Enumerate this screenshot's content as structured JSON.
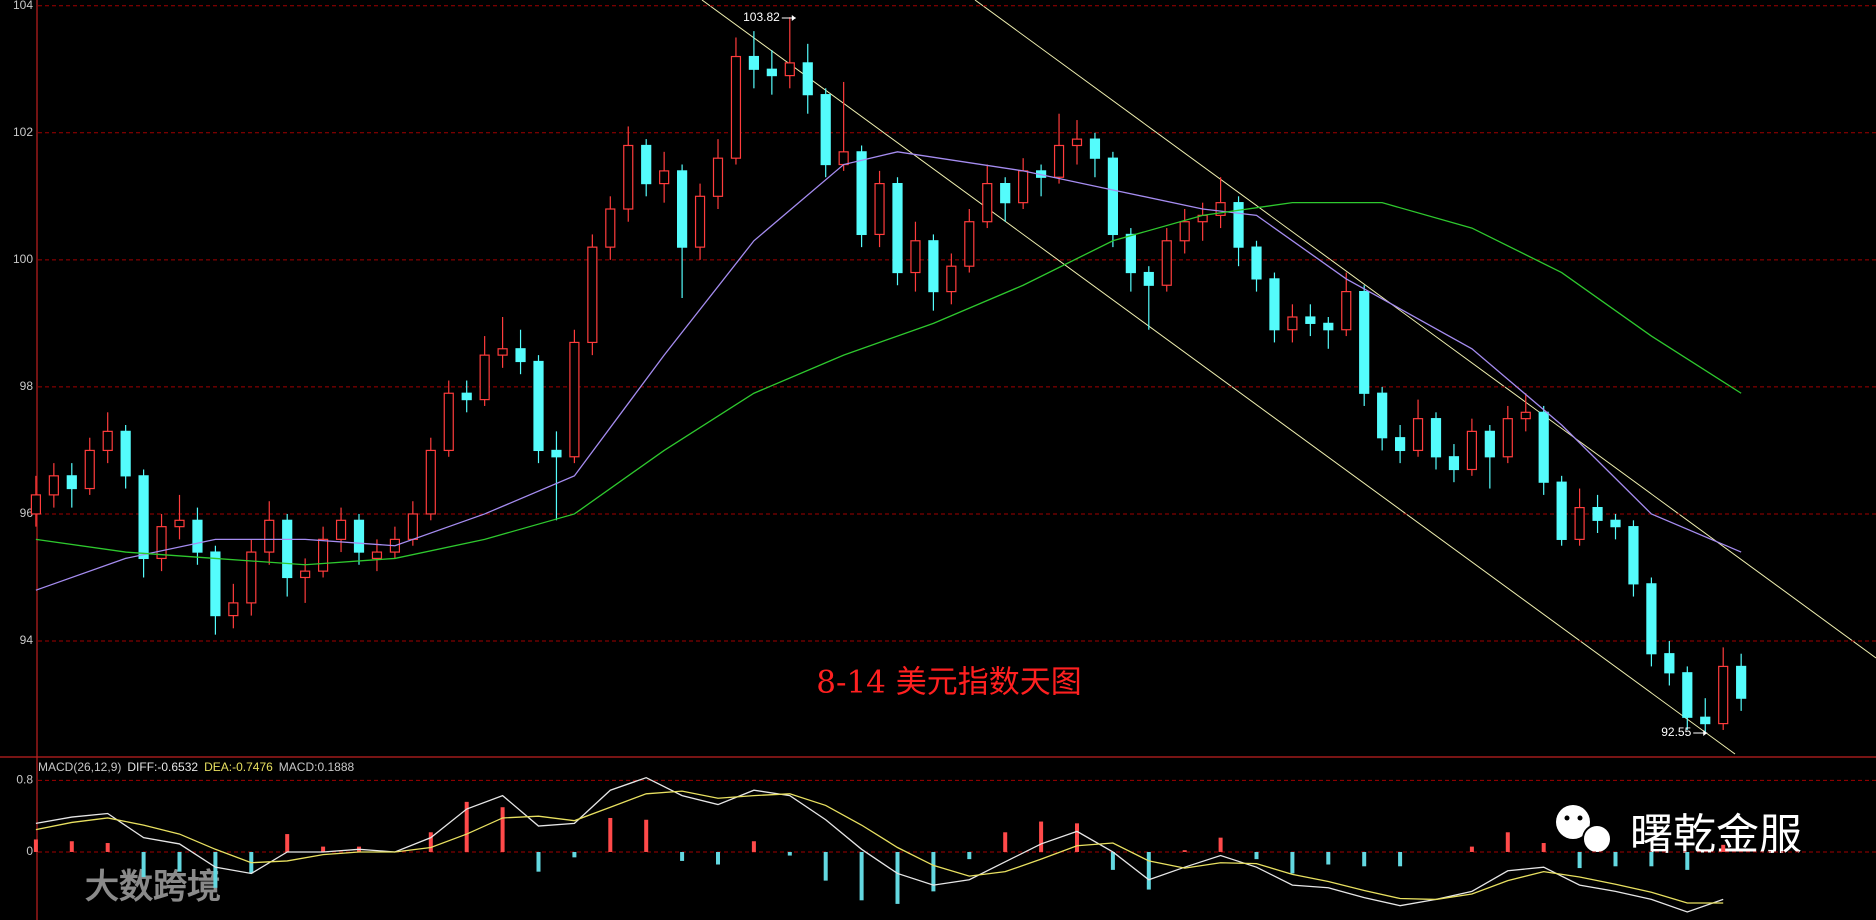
{
  "chart_data": [
    {
      "type": "candlestick",
      "title": "8-14 美元指数天图",
      "up_color": "#ff3c3c",
      "down_color": "#54fcfc",
      "ylim": [
        92.19,
        104.09
      ],
      "yticks": [
        94,
        96,
        98,
        100,
        102,
        104
      ],
      "grid": true,
      "candles": [
        [
          96.0,
          96.6,
          95.8,
          96.3
        ],
        [
          96.3,
          96.8,
          96.1,
          96.6
        ],
        [
          96.6,
          96.8,
          96.1,
          96.4
        ],
        [
          96.4,
          97.2,
          96.3,
          97.0
        ],
        [
          97.0,
          97.6,
          96.8,
          97.3
        ],
        [
          97.3,
          97.4,
          96.4,
          96.6
        ],
        [
          96.6,
          96.7,
          95.0,
          95.3
        ],
        [
          95.3,
          96.0,
          95.1,
          95.8
        ],
        [
          95.8,
          96.3,
          95.6,
          95.9
        ],
        [
          95.9,
          96.1,
          95.2,
          95.4
        ],
        [
          95.4,
          95.5,
          94.1,
          94.4
        ],
        [
          94.4,
          94.9,
          94.2,
          94.6
        ],
        [
          94.6,
          95.6,
          94.4,
          95.4
        ],
        [
          95.4,
          96.2,
          95.2,
          95.9
        ],
        [
          95.9,
          96.0,
          94.7,
          95.0
        ],
        [
          95.0,
          95.3,
          94.6,
          95.1
        ],
        [
          95.1,
          95.8,
          95.0,
          95.6
        ],
        [
          95.6,
          96.1,
          95.4,
          95.9
        ],
        [
          95.9,
          96.0,
          95.2,
          95.4
        ],
        [
          95.3,
          95.6,
          95.1,
          95.4
        ],
        [
          95.4,
          95.8,
          95.3,
          95.6
        ],
        [
          95.6,
          96.2,
          95.5,
          96.0
        ],
        [
          96.0,
          97.2,
          95.9,
          97.0
        ],
        [
          97.0,
          98.1,
          96.9,
          97.9
        ],
        [
          97.9,
          98.1,
          97.6,
          97.8
        ],
        [
          97.8,
          98.8,
          97.7,
          98.5
        ],
        [
          98.5,
          99.1,
          98.3,
          98.6
        ],
        [
          98.6,
          98.9,
          98.2,
          98.4
        ],
        [
          98.4,
          98.5,
          96.8,
          97.0
        ],
        [
          97.0,
          97.3,
          95.9,
          96.9
        ],
        [
          96.9,
          98.9,
          96.8,
          98.7
        ],
        [
          98.7,
          100.4,
          98.5,
          100.2
        ],
        [
          100.2,
          101.0,
          100.0,
          100.8
        ],
        [
          100.8,
          102.1,
          100.6,
          101.8
        ],
        [
          101.8,
          101.9,
          101.0,
          101.2
        ],
        [
          101.2,
          101.7,
          100.9,
          101.4
        ],
        [
          101.4,
          101.5,
          99.4,
          100.2
        ],
        [
          100.2,
          101.2,
          100.0,
          101.0
        ],
        [
          101.0,
          101.9,
          100.8,
          101.6
        ],
        [
          101.6,
          103.5,
          101.5,
          103.2
        ],
        [
          103.2,
          103.6,
          102.7,
          103.0
        ],
        [
          103.0,
          103.3,
          102.6,
          102.9
        ],
        [
          102.9,
          103.82,
          102.7,
          103.1
        ],
        [
          103.1,
          103.4,
          102.3,
          102.6
        ],
        [
          102.6,
          102.7,
          101.3,
          101.5
        ],
        [
          101.5,
          102.8,
          101.4,
          101.7
        ],
        [
          101.7,
          101.8,
          100.2,
          100.4
        ],
        [
          100.4,
          101.4,
          100.2,
          101.2
        ],
        [
          101.2,
          101.3,
          99.6,
          99.8
        ],
        [
          99.8,
          100.6,
          99.5,
          100.3
        ],
        [
          100.3,
          100.4,
          99.2,
          99.5
        ],
        [
          99.5,
          100.1,
          99.3,
          99.9
        ],
        [
          99.9,
          100.8,
          99.8,
          100.6
        ],
        [
          100.6,
          101.5,
          100.5,
          101.2
        ],
        [
          101.2,
          101.3,
          100.6,
          100.9
        ],
        [
          100.9,
          101.6,
          100.8,
          101.4
        ],
        [
          101.4,
          101.5,
          101.0,
          101.3
        ],
        [
          101.3,
          102.3,
          101.2,
          101.8
        ],
        [
          101.8,
          102.2,
          101.5,
          101.9
        ],
        [
          101.9,
          102.0,
          101.3,
          101.6
        ],
        [
          101.6,
          101.7,
          100.2,
          100.4
        ],
        [
          100.4,
          100.5,
          99.5,
          99.8
        ],
        [
          99.8,
          99.9,
          98.9,
          99.6
        ],
        [
          99.6,
          100.5,
          99.5,
          100.3
        ],
        [
          100.3,
          100.8,
          100.1,
          100.6
        ],
        [
          100.6,
          100.9,
          100.3,
          100.7
        ],
        [
          100.7,
          101.3,
          100.5,
          100.9
        ],
        [
          100.9,
          101.0,
          99.9,
          100.2
        ],
        [
          100.2,
          100.3,
          99.5,
          99.7
        ],
        [
          99.7,
          99.8,
          98.7,
          98.9
        ],
        [
          98.9,
          99.3,
          98.7,
          99.1
        ],
        [
          99.1,
          99.3,
          98.8,
          99.0
        ],
        [
          99.0,
          99.1,
          98.6,
          98.9
        ],
        [
          98.9,
          99.8,
          98.8,
          99.5
        ],
        [
          99.5,
          99.6,
          97.7,
          97.9
        ],
        [
          97.9,
          98.0,
          97.0,
          97.2
        ],
        [
          97.2,
          97.4,
          96.8,
          97.0
        ],
        [
          97.0,
          97.8,
          96.9,
          97.5
        ],
        [
          97.5,
          97.6,
          96.7,
          96.9
        ],
        [
          96.9,
          97.1,
          96.5,
          96.7
        ],
        [
          96.7,
          97.5,
          96.6,
          97.3
        ],
        [
          97.3,
          97.4,
          96.4,
          96.9
        ],
        [
          96.9,
          97.7,
          96.8,
          97.5
        ],
        [
          97.5,
          97.9,
          97.3,
          97.6
        ],
        [
          97.6,
          97.7,
          96.3,
          96.5
        ],
        [
          96.5,
          96.6,
          95.5,
          95.6
        ],
        [
          95.6,
          96.4,
          95.5,
          96.1
        ],
        [
          96.1,
          96.3,
          95.7,
          95.9
        ],
        [
          95.9,
          96.0,
          95.6,
          95.8
        ],
        [
          95.8,
          95.9,
          94.7,
          94.9
        ],
        [
          94.9,
          95.0,
          93.6,
          93.8
        ],
        [
          93.8,
          94.0,
          93.3,
          93.5
        ],
        [
          93.5,
          93.6,
          92.6,
          92.8
        ],
        [
          92.8,
          93.1,
          92.55,
          92.7
        ],
        [
          92.7,
          93.9,
          92.6,
          93.6
        ],
        [
          93.6,
          93.8,
          92.9,
          93.1
        ]
      ],
      "series": [
        {
          "color": "#a58cf0",
          "x": [
            0,
            5,
            10,
            15,
            20,
            25,
            30,
            35,
            40,
            45,
            48,
            55,
            60,
            65,
            68,
            73,
            80,
            85,
            90,
            95
          ],
          "values": [
            94.8,
            95.3,
            95.6,
            95.6,
            95.5,
            96.0,
            96.6,
            98.5,
            100.3,
            101.5,
            101.7,
            101.4,
            101.1,
            100.8,
            100.7,
            99.7,
            98.6,
            97.4,
            96.0,
            95.4
          ]
        },
        {
          "color": "#2ec82e",
          "x": [
            0,
            5,
            10,
            15,
            20,
            25,
            30,
            35,
            40,
            45,
            50,
            55,
            60,
            65,
            70,
            75,
            80,
            85,
            90,
            95
          ],
          "values": [
            95.6,
            95.4,
            95.3,
            95.2,
            95.3,
            95.6,
            96.0,
            97.0,
            97.9,
            98.5,
            99.0,
            99.6,
            100.3,
            100.7,
            100.9,
            100.9,
            100.5,
            99.8,
            98.8,
            97.9
          ]
        }
      ],
      "high_label_index": 42,
      "low_label_index": 93,
      "watermarks": [
        "大数跨境",
        "曙乾金服"
      ]
    },
    {
      "type": "macd",
      "legend": [
        "MACD(26,12,9)",
        "DIFF:-0.6532",
        "DEA:-0.7476",
        "MACD:0.1888"
      ],
      "ylim": [
        -0.76,
        1.05
      ],
      "yticks": [
        0,
        0.8
      ],
      "grid": true,
      "x": [
        0,
        2,
        4,
        6,
        8,
        10,
        12,
        14,
        16,
        18,
        20,
        22,
        24,
        26,
        28,
        30,
        32,
        34,
        36,
        38,
        40,
        42,
        44,
        46,
        48,
        50,
        52,
        54,
        56,
        58,
        60,
        62,
        64,
        66,
        68,
        70,
        72,
        74,
        76,
        78,
        80,
        82,
        84,
        86,
        88,
        90,
        92,
        94
      ],
      "series": [
        {
          "color": "#e6e6e6",
          "values": [
            0.32,
            0.39,
            0.43,
            0.16,
            0.09,
            -0.17,
            -0.24,
            0,
            0,
            0.03,
            0,
            0.16,
            0.48,
            0.63,
            0.29,
            0.32,
            0.69,
            0.83,
            0.63,
            0.53,
            0.69,
            0.63,
            0.36,
            0.03,
            -0.24,
            -0.37,
            -0.31,
            -0.11,
            0.09,
            0.23,
            0,
            -0.31,
            -0.17,
            -0.04,
            -0.17,
            -0.37,
            -0.4,
            -0.51,
            -0.6,
            -0.53,
            -0.44,
            -0.21,
            -0.17,
            -0.37,
            -0.44,
            -0.53,
            -0.67,
            -0.53
          ]
        },
        {
          "color": "#e8e060",
          "values": [
            0.25,
            0.33,
            0.38,
            0.3,
            0.2,
            0.03,
            -0.12,
            -0.1,
            -0.03,
            0,
            0,
            0.05,
            0.2,
            0.38,
            0.4,
            0.35,
            0.5,
            0.65,
            0.68,
            0.6,
            0.63,
            0.65,
            0.52,
            0.3,
            0.05,
            -0.15,
            -0.27,
            -0.22,
            -0.08,
            0.07,
            0.1,
            -0.1,
            -0.18,
            -0.12,
            -0.13,
            -0.25,
            -0.33,
            -0.43,
            -0.52,
            -0.53,
            -0.47,
            -0.32,
            -0.22,
            -0.28,
            -0.36,
            -0.45,
            -0.57,
            -0.57
          ]
        }
      ],
      "histogram": [
        0.14,
        0.12,
        0.1,
        -0.28,
        -0.22,
        -0.4,
        -0.24,
        0.2,
        0.06,
        0.06,
        0,
        0.22,
        0.56,
        0.5,
        -0.22,
        -0.06,
        0.38,
        0.36,
        -0.1,
        -0.14,
        0.12,
        -0.04,
        -0.32,
        -0.54,
        -0.58,
        -0.44,
        -0.08,
        0.22,
        0.34,
        0.32,
        -0.2,
        -0.42,
        0.02,
        0.16,
        -0.08,
        -0.24,
        -0.14,
        -0.16,
        -0.16,
        0,
        0.06,
        0.22,
        0.1,
        -0.18,
        -0.16,
        -0.16,
        -0.2,
        0.08
      ],
      "up_color": "#ff4a4a",
      "down_color": "#63d8e0"
    }
  ]
}
